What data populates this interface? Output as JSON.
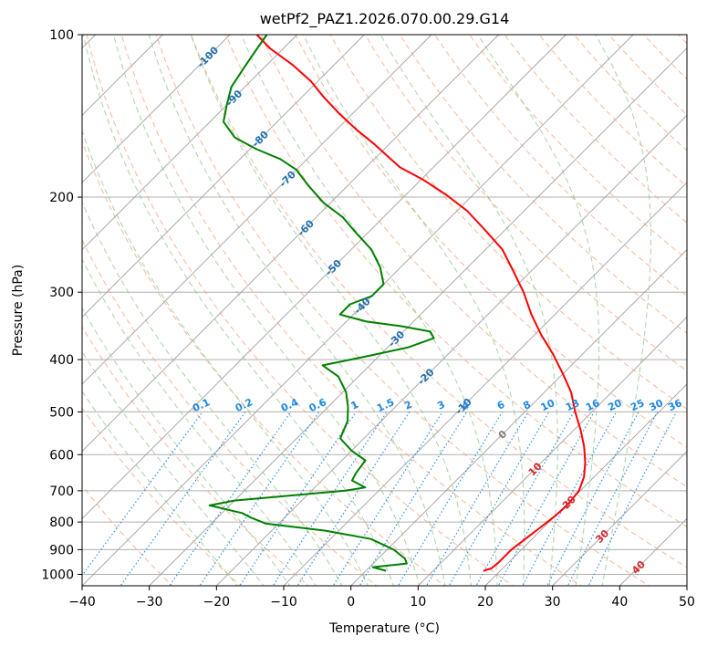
{
  "chart_data": {
    "type": "line",
    "subtype": "skew-t log-p diagram",
    "title": "wetPf2_PAZ1.2026.070.00.29.G14",
    "xlabel": "Temperature (°C)",
    "ylabel": "Pressure (hPa)",
    "xlim": [
      -40,
      50
    ],
    "ylim": [
      1050,
      100
    ],
    "x_ticks": [
      -40,
      -30,
      -20,
      -10,
      0,
      10,
      20,
      30,
      40,
      50
    ],
    "x_tick_labels": [
      "−40",
      "−30",
      "−20",
      "−10",
      "0",
      "10",
      "20",
      "30",
      "40",
      "50"
    ],
    "y_ticks": [
      100,
      200,
      300,
      400,
      500,
      600,
      700,
      800,
      900,
      1000
    ],
    "y_tick_labels": [
      "100",
      "200",
      "300",
      "400",
      "500",
      "600",
      "700",
      "800",
      "900",
      "1000"
    ],
    "grid": true,
    "isotherm_labels": [
      {
        "label": "-100",
        "t": -100,
        "p": 110
      },
      {
        "label": "-90",
        "t": -90,
        "p": 131
      },
      {
        "label": "-80",
        "t": -80,
        "p": 156
      },
      {
        "label": "-70",
        "t": -70,
        "p": 185
      },
      {
        "label": "-60",
        "t": -60,
        "p": 228
      },
      {
        "label": "-50",
        "t": -50,
        "p": 270
      },
      {
        "label": "-40",
        "t": -40,
        "p": 318
      },
      {
        "label": "-30",
        "t": -30,
        "p": 366
      },
      {
        "label": "-20",
        "t": -20,
        "p": 430
      },
      {
        "label": "-10",
        "t": -10,
        "p": 488
      },
      {
        "label": "0",
        "t": 0,
        "p": 550
      },
      {
        "label": "10",
        "t": 10,
        "p": 638
      },
      {
        "label": "20",
        "t": 20,
        "p": 735
      },
      {
        "label": "30",
        "t": 30,
        "p": 850
      },
      {
        "label": "40",
        "t": 40,
        "p": 970
      }
    ],
    "mixing_ratio_labels": [
      "0.1",
      "0.2",
      "0.4",
      "0.6",
      "1",
      "1.5",
      "2",
      "3",
      "4",
      "6",
      "8",
      "10",
      "13",
      "16",
      "20",
      "25",
      "30",
      "36"
    ],
    "mixing_ratio_label_pressure": 500,
    "series": [
      {
        "name": "Temperature",
        "color": "#ff0000",
        "points": [
          {
            "t": 17.5,
            "p": 985
          },
          {
            "t": 18.3,
            "p": 975
          },
          {
            "t": 18.5,
            "p": 950
          },
          {
            "t": 18.5,
            "p": 900
          },
          {
            "t": 19.0,
            "p": 860
          },
          {
            "t": 19.5,
            "p": 820
          },
          {
            "t": 20.0,
            "p": 780
          },
          {
            "t": 20.2,
            "p": 740
          },
          {
            "t": 19.8,
            "p": 700
          },
          {
            "t": 18.5,
            "p": 660
          },
          {
            "t": 16.5,
            "p": 620
          },
          {
            "t": 14.0,
            "p": 580
          },
          {
            "t": 11.0,
            "p": 540
          },
          {
            "t": 7.5,
            "p": 500
          },
          {
            "t": 4.0,
            "p": 460
          },
          {
            "t": 0.0,
            "p": 425
          },
          {
            "t": -4.5,
            "p": 390
          },
          {
            "t": -9.0,
            "p": 360
          },
          {
            "t": -13.5,
            "p": 330
          },
          {
            "t": -18.0,
            "p": 300
          },
          {
            "t": -22.5,
            "p": 275
          },
          {
            "t": -27.5,
            "p": 250
          },
          {
            "t": -33.0,
            "p": 230
          },
          {
            "t": -38.5,
            "p": 212
          },
          {
            "t": -44.0,
            "p": 198
          },
          {
            "t": -49.5,
            "p": 186
          },
          {
            "t": -55.0,
            "p": 176
          },
          {
            "t": -58.0,
            "p": 169
          },
          {
            "t": -62.0,
            "p": 160
          },
          {
            "t": -67.0,
            "p": 150
          },
          {
            "t": -72.0,
            "p": 140
          },
          {
            "t": -77.0,
            "p": 130
          },
          {
            "t": -81.0,
            "p": 122
          },
          {
            "t": -86.0,
            "p": 114
          },
          {
            "t": -92.0,
            "p": 106
          },
          {
            "t": -96.0,
            "p": 100
          }
        ]
      },
      {
        "name": "Dewpoint",
        "color": "#008000",
        "points": [
          {
            "t": 3.0,
            "p": 985
          },
          {
            "t": 0.5,
            "p": 970
          },
          {
            "t": 5.0,
            "p": 955
          },
          {
            "t": 4.0,
            "p": 935
          },
          {
            "t": 1.0,
            "p": 900
          },
          {
            "t": -4.0,
            "p": 860
          },
          {
            "t": -12.0,
            "p": 830
          },
          {
            "t": -22.0,
            "p": 805
          },
          {
            "t": -25.0,
            "p": 785
          },
          {
            "t": -27.0,
            "p": 770
          },
          {
            "t": -33.0,
            "p": 745
          },
          {
            "t": -30.0,
            "p": 730
          },
          {
            "t": -15.0,
            "p": 700
          },
          {
            "t": -12.5,
            "p": 690
          },
          {
            "t": -15.5,
            "p": 670
          },
          {
            "t": -16.0,
            "p": 650
          },
          {
            "t": -16.5,
            "p": 615
          },
          {
            "t": -20.0,
            "p": 590
          },
          {
            "t": -23.5,
            "p": 560
          },
          {
            "t": -25.0,
            "p": 520
          },
          {
            "t": -27.0,
            "p": 490
          },
          {
            "t": -29.5,
            "p": 460
          },
          {
            "t": -33.0,
            "p": 430
          },
          {
            "t": -37.0,
            "p": 410
          },
          {
            "t": -32.0,
            "p": 395
          },
          {
            "t": -27.0,
            "p": 380
          },
          {
            "t": -24.5,
            "p": 365
          },
          {
            "t": -26.0,
            "p": 355
          },
          {
            "t": -31.0,
            "p": 347
          },
          {
            "t": -37.0,
            "p": 340
          },
          {
            "t": -42.0,
            "p": 330
          },
          {
            "t": -42.0,
            "p": 316
          },
          {
            "t": -40.0,
            "p": 305
          },
          {
            "t": -40.0,
            "p": 290
          },
          {
            "t": -43.0,
            "p": 270
          },
          {
            "t": -47.0,
            "p": 250
          },
          {
            "t": -52.0,
            "p": 232
          },
          {
            "t": -56.0,
            "p": 218
          },
          {
            "t": -61.0,
            "p": 205
          },
          {
            "t": -66.0,
            "p": 190
          },
          {
            "t": -70.0,
            "p": 178
          },
          {
            "t": -74.0,
            "p": 170
          },
          {
            "t": -79.0,
            "p": 163
          },
          {
            "t": -84.0,
            "p": 155
          },
          {
            "t": -88.0,
            "p": 145
          },
          {
            "t": -90.0,
            "p": 135
          },
          {
            "t": -92.0,
            "p": 125
          },
          {
            "t": -93.0,
            "p": 115
          },
          {
            "t": -94.0,
            "p": 105
          },
          {
            "t": -94.5,
            "p": 100
          }
        ]
      }
    ],
    "colors": {
      "isobar": "#b0b0b0",
      "isotherm": "#a0a0a0",
      "dry_adiabat": "#f2a07b",
      "moist_adiabat": "#8bc48a",
      "mixing_ratio": "#1e88e5",
      "isotherm_label_cold": "#1f6fb0",
      "isotherm_label_warm": "#d62728",
      "isotherm_label_zero": "#808080",
      "mixing_ratio_label": "#1e88e5"
    }
  }
}
